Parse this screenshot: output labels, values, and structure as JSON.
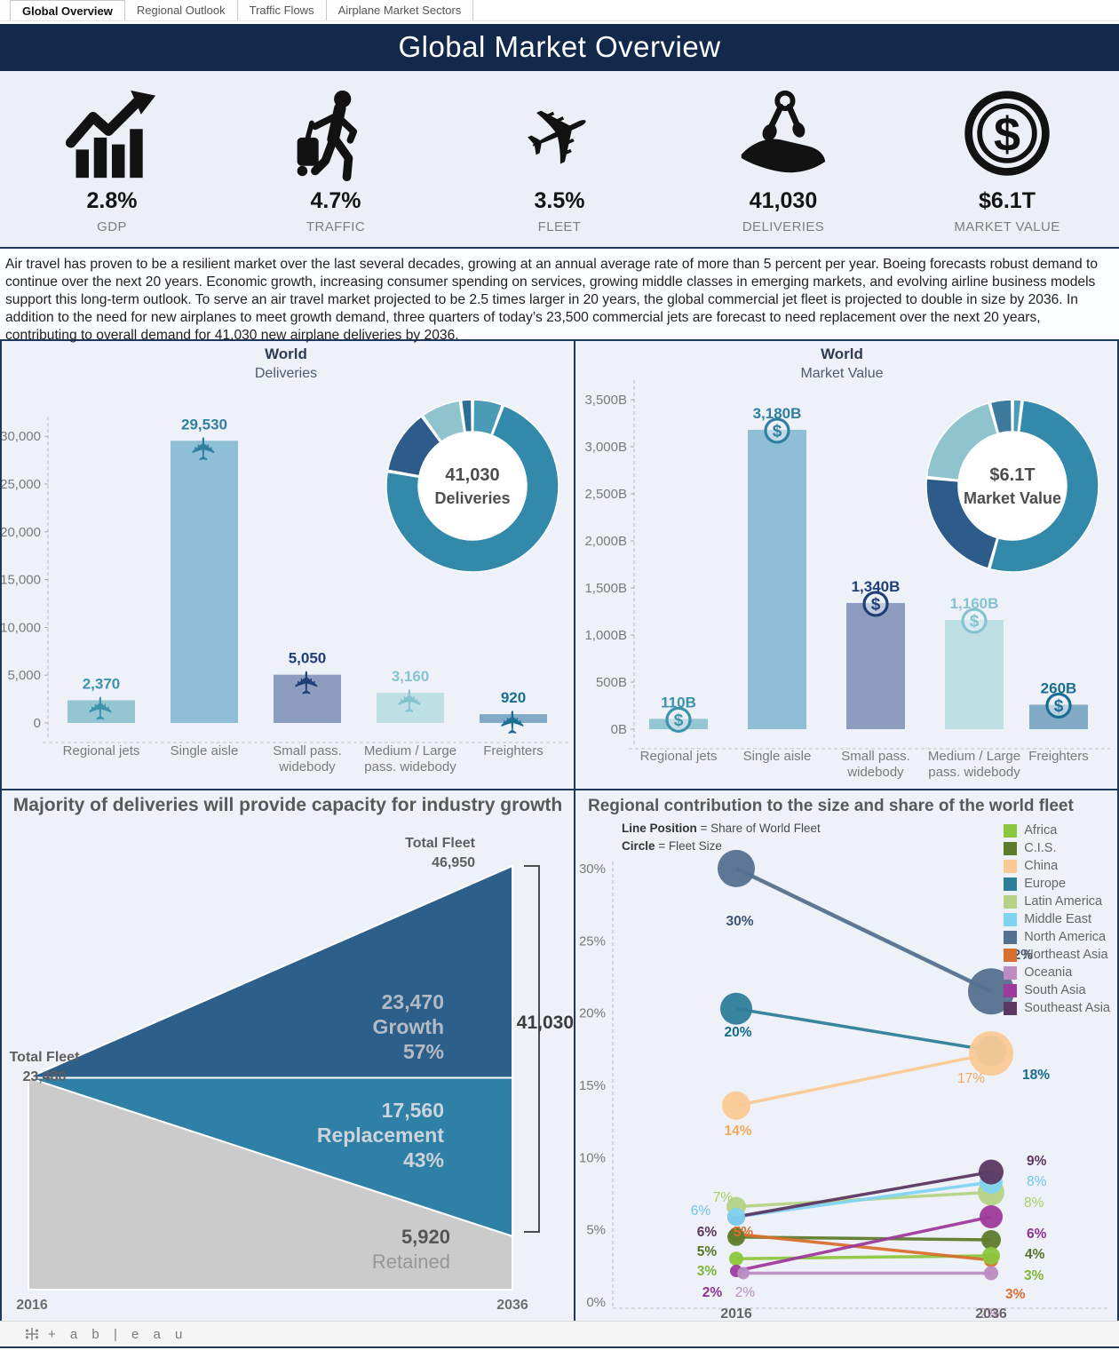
{
  "tabs": [
    {
      "label": "Global Overview",
      "active": true
    },
    {
      "label": "Regional Outlook",
      "active": false
    },
    {
      "label": "Traffic Flows",
      "active": false
    },
    {
      "label": "Airplane Market Sectors",
      "active": false
    }
  ],
  "header": {
    "title": "Global Market Overview"
  },
  "kpis": [
    {
      "icon": "growth-arrow-icon",
      "value": "2.8%",
      "label": "GDP"
    },
    {
      "icon": "traveler-icon",
      "value": "4.7%",
      "label": "TRAFFIC"
    },
    {
      "icon": "airplane-icon",
      "value": "3.5%",
      "label": "FLEET"
    },
    {
      "icon": "hand-keys-icon",
      "value": "41,030",
      "label": "DELIVERIES"
    },
    {
      "icon": "dollar-coin-icon",
      "value": "$6.1T",
      "label": "MARKET VALUE"
    }
  ],
  "intro_text": "Air travel has proven to be a resilient market over the last several decades, growing at an annual average rate of more than 5 percent per year. Boeing forecasts robust demand to continue over the next 20 years. Economic growth, increasing consumer spending on services, growing middle classes in emerging markets, and evolving airline business models support this long-term outlook. To serve an air travel market projected to be 2.5 times larger in 20 years, the global commercial jet fleet is projected to double in size by 2036. In addition to the need for new airplanes to meet growth demand, three quarters of today’s 23,500 commercial jets are forecast to need replacement over the next 20 years, contributing to overall demand for 41,030 new airplane deliveries by 2036.",
  "chart_data": [
    {
      "id": "world-deliveries",
      "type": "bar",
      "title": "World",
      "subtitle": "Deliveries",
      "categories": [
        [
          "Regional jets"
        ],
        [
          "Single aisle"
        ],
        [
          "Small pass.",
          "widebody"
        ],
        [
          "Medium / Large",
          "pass. widebody"
        ],
        [
          "Freighters"
        ]
      ],
      "values": [
        2370,
        29530,
        5050,
        3160,
        920
      ],
      "value_labels": [
        "2,370",
        "29,530",
        "5,050",
        "3,160",
        "920"
      ],
      "bar_colors": [
        "#94C5D3",
        "#8FBFD6",
        "#8C9DBF",
        "#BEE0E5",
        "#82A9C6"
      ],
      "label_colors": [
        "#3D93AB",
        "#2E7FA0",
        "#1F3F77",
        "#85C3D1",
        "#1A6E93"
      ],
      "y_ticks": [
        "0",
        "5,000",
        "10,000",
        "15,000",
        "20,000",
        "25,000",
        "30,000"
      ],
      "ylim": [
        0,
        32500
      ],
      "marker": "plane",
      "legend_position": "none",
      "grid": false,
      "donut": {
        "type": "pie",
        "center_label": [
          "41,030",
          "Deliveries"
        ],
        "segments": [
          {
            "name": "Regional jets",
            "value": 2370,
            "color": "#4A9BB5"
          },
          {
            "name": "Single aisle",
            "value": 29530,
            "color": "#3389A9"
          },
          {
            "name": "Small pass. widebody",
            "value": 5050,
            "color": "#2D5C8A"
          },
          {
            "name": "Medium / Large pass. widebody",
            "value": 3160,
            "color": "#8FC4CE"
          },
          {
            "name": "Freighters",
            "value": 920,
            "color": "#2F6E94"
          }
        ]
      }
    },
    {
      "id": "world-market-value",
      "type": "bar",
      "title": "World",
      "subtitle": "Market Value",
      "categories": [
        [
          "Regional jets"
        ],
        [
          "Single aisle"
        ],
        [
          "Small pass.",
          "widebody"
        ],
        [
          "Medium / Large",
          "pass. widebody"
        ],
        [
          "Freighters"
        ]
      ],
      "values": [
        110,
        3180,
        1340,
        1160,
        260
      ],
      "value_labels": [
        "110B",
        "3,180B",
        "1,340B",
        "1,160B",
        "260B"
      ],
      "bar_colors": [
        "#94C5D3",
        "#8FBFD6",
        "#8C9DBF",
        "#BEE0E5",
        "#82A9C6"
      ],
      "label_colors": [
        "#3D93AB",
        "#2E7FA0",
        "#1F3F77",
        "#85C3D1",
        "#1A6E93"
      ],
      "y_ticks": [
        "0B",
        "500B",
        "1,000B",
        "1,500B",
        "2,000B",
        "2,500B",
        "3,000B",
        "3,500B"
      ],
      "ylim": [
        0,
        3700
      ],
      "marker": "dollar",
      "legend_position": "none",
      "grid": false,
      "donut": {
        "type": "pie",
        "center_label": [
          "$6.1T",
          "Market Value"
        ],
        "segments": [
          {
            "name": "Regional jets",
            "value": 110,
            "color": "#4A9BB5"
          },
          {
            "name": "Single aisle",
            "value": 3180,
            "color": "#3389A9"
          },
          {
            "name": "Small pass. widebody",
            "value": 1340,
            "color": "#2D5C8A"
          },
          {
            "name": "Medium / Large pass. widebody",
            "value": 1160,
            "color": "#8FC4CE"
          },
          {
            "name": "Freighters",
            "value": 260,
            "color": "#3D7A9E"
          }
        ]
      }
    },
    {
      "id": "fleet-growth",
      "type": "area",
      "title": "Majority of deliveries will provide capacity for industry growth",
      "x_labels": [
        "2016",
        "2036"
      ],
      "start_total": 23480,
      "end_total": 46950,
      "start_label": [
        "Total Fleet",
        "23,480"
      ],
      "end_label": [
        "Total Fleet",
        "46,950"
      ],
      "layers": [
        {
          "name": "Growth",
          "value": 23470,
          "value_label": "23,470",
          "pct_label": "57%",
          "color": "#2C5F8A"
        },
        {
          "name": "Replacement",
          "value": 17560,
          "value_label": "17,560",
          "pct_label": "43%",
          "color": "#2E80A6"
        },
        {
          "name": "Retained",
          "value": 5920,
          "value_label": "5,920",
          "pct_label": "",
          "color": "#CBCBCB"
        }
      ],
      "bracket_total_label": "41,030"
    },
    {
      "id": "regional-fleet-share",
      "type": "scatter",
      "title": "Regional contribution to the size and share of the world fleet",
      "note_bold_1": "Line Position",
      "note_rest_1": " = Share of World Fleet",
      "note_bold_2": "Circle",
      "note_rest_2": " = Fleet Size",
      "x_labels": [
        "2016",
        "2036"
      ],
      "y_ticks": [
        "0%",
        "5%",
        "10%",
        "15%",
        "20%",
        "25%",
        "30%"
      ],
      "ylim": [
        0,
        32
      ],
      "regions": [
        {
          "name": "Africa",
          "color": "#8CC63E",
          "share_2016": 3,
          "share_2036": 3,
          "label_2016": "3%",
          "label_2036": "3%"
        },
        {
          "name": "C.I.S.",
          "color": "#5E7B2B",
          "share_2016": 5,
          "share_2036": 4,
          "label_2016": "5%",
          "label_2036": "4%"
        },
        {
          "name": "China",
          "color": "#F9C995",
          "share_2016": 14,
          "share_2036": 17,
          "label_2016": "14%",
          "label_2036": "17%"
        },
        {
          "name": "Europe",
          "color": "#2E7E9A",
          "share_2016": 20,
          "share_2036": 18,
          "label_2016": "20%",
          "label_2036": "18%"
        },
        {
          "name": "Latin America",
          "color": "#B5D387",
          "share_2016": 7,
          "share_2036": 8,
          "label_2016": "7%",
          "label_2036": "8%"
        },
        {
          "name": "Middle East",
          "color": "#7FD4F2",
          "share_2016": 6,
          "share_2036": 8,
          "label_2016": "6%",
          "label_2036": "8%"
        },
        {
          "name": "North America",
          "color": "#54708F",
          "share_2016": 30,
          "share_2036": 22,
          "label_2016": "30%",
          "label_2036": "22%"
        },
        {
          "name": "Northeast Asia",
          "color": "#D86F2E",
          "share_2016": 5,
          "share_2036": 3,
          "label_2016": "5%",
          "label_2036": "3%"
        },
        {
          "name": "Oceania",
          "color": "#BC8CC2",
          "share_2016": 2,
          "share_2036": 2,
          "label_2016": "2%",
          "label_2036": "2%"
        },
        {
          "name": "South Asia",
          "color": "#9E3A9B",
          "share_2016": 2,
          "share_2036": 6,
          "label_2016": "2%",
          "label_2036": "6%"
        },
        {
          "name": "Southeast Asia",
          "color": "#5C3761",
          "share_2016": 6,
          "share_2036": 9,
          "label_2016": "6%",
          "label_2036": "9%"
        }
      ]
    }
  ],
  "footer": {
    "logo_text": "tableau"
  }
}
